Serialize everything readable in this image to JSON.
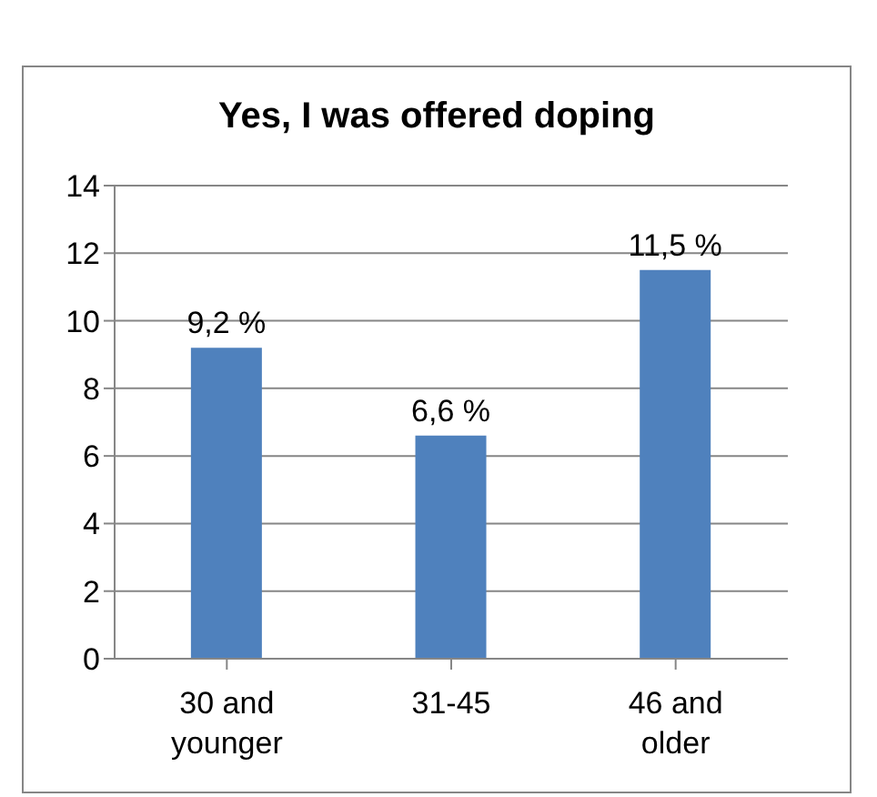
{
  "chart_data": {
    "type": "bar",
    "title": "Yes, I was offered doping",
    "categories": [
      "30 and younger",
      "31-45",
      "46 and older"
    ],
    "values": [
      9.2,
      6.6,
      11.5
    ],
    "color": "#4f81bd",
    "value_labels": [
      "9,2 %",
      "6,6 %",
      "11,5 %"
    ],
    "ylim": [
      0,
      14
    ],
    "yticks": [
      0,
      2,
      4,
      6,
      8,
      10,
      12,
      14
    ],
    "grid": "y"
  }
}
